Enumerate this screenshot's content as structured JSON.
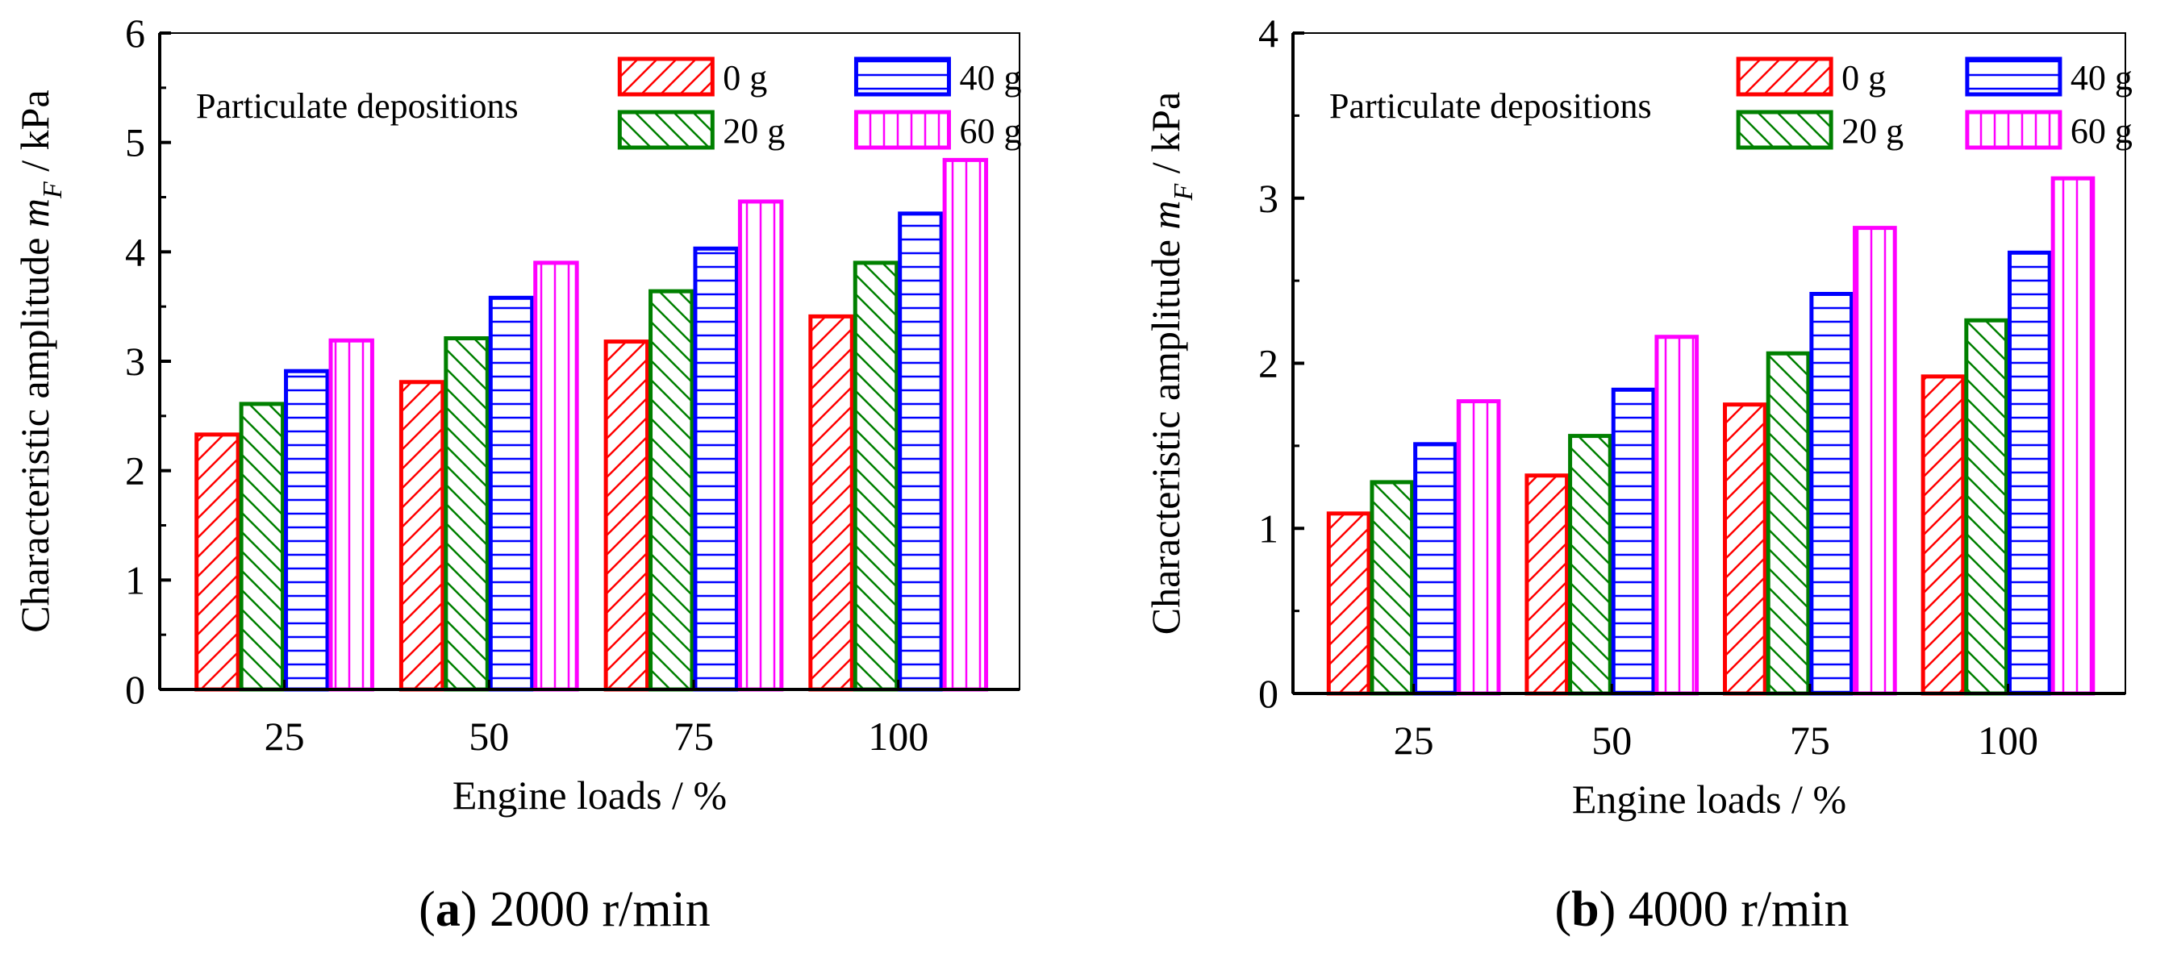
{
  "chart_data": [
    {
      "type": "bar",
      "caption_letter": "a",
      "caption_text": "2000 r/min",
      "categories": [
        "25",
        "50",
        "75",
        "100"
      ],
      "xlabel": "Engine loads  / %",
      "ylabel_main": "Characteristic amplitude ",
      "ylabel_var": "m",
      "ylabel_sub": "F",
      "ylabel_unit": " /  kPa",
      "ylim": [
        0,
        6
      ],
      "yticks": [
        "0",
        "1",
        "2",
        "3",
        "4",
        "5",
        "6"
      ],
      "legend_title": "Particulate depositions",
      "legend_position": "top-right",
      "series": [
        {
          "name": "0 g",
          "color": "#ff0000",
          "pattern": "diag-right",
          "values": [
            2.33,
            2.81,
            3.18,
            3.41
          ]
        },
        {
          "name": "20 g",
          "color": "#008000",
          "pattern": "diag-left",
          "values": [
            2.61,
            3.21,
            3.64,
            3.9
          ]
        },
        {
          "name": "40 g",
          "color": "#0000ff",
          "pattern": "horizontal",
          "values": [
            2.91,
            3.58,
            4.03,
            4.35
          ]
        },
        {
          "name": "60 g",
          "color": "#ff00ff",
          "pattern": "vertical",
          "values": [
            3.19,
            3.9,
            4.46,
            4.84
          ]
        }
      ]
    },
    {
      "type": "bar",
      "caption_letter": "b",
      "caption_text": "4000 r/min",
      "categories": [
        "25",
        "50",
        "75",
        "100"
      ],
      "xlabel": "Engine loads  / %",
      "ylabel_main": "Characteristic amplitude ",
      "ylabel_var": "m",
      "ylabel_sub": "F",
      "ylabel_unit": " /  kPa",
      "ylim": [
        0,
        4
      ],
      "yticks": [
        "0",
        "1",
        "2",
        "3",
        "4"
      ],
      "legend_title": "Particulate depositions",
      "legend_position": "top-right",
      "series": [
        {
          "name": "0 g",
          "color": "#ff0000",
          "pattern": "diag-right",
          "values": [
            1.09,
            1.32,
            1.75,
            1.92
          ]
        },
        {
          "name": "20 g",
          "color": "#008000",
          "pattern": "diag-left",
          "values": [
            1.28,
            1.56,
            2.06,
            2.26
          ]
        },
        {
          "name": "40 g",
          "color": "#0000ff",
          "pattern": "horizontal",
          "values": [
            1.51,
            1.84,
            2.42,
            2.67
          ]
        },
        {
          "name": "60 g",
          "color": "#ff00ff",
          "pattern": "vertical",
          "values": [
            1.77,
            2.16,
            2.82,
            3.12
          ]
        }
      ]
    }
  ]
}
